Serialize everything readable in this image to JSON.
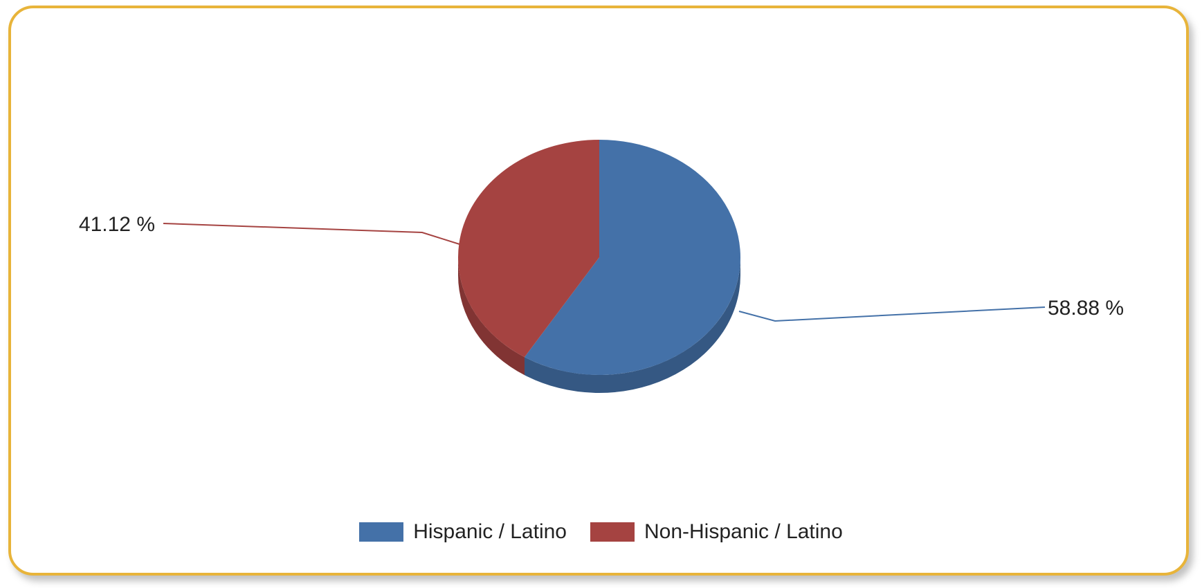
{
  "chart_data": {
    "type": "pie",
    "categories": [
      "Hispanic / Latino",
      "Non-Hispanic / Latino"
    ],
    "values": [
      58.88,
      41.12
    ],
    "labels": [
      "58.88 %",
      "41.12 %"
    ],
    "colors": [
      "#4471a8",
      "#a54341"
    ],
    "legend_position": "bottom",
    "style": "3d"
  },
  "colors": {
    "border": "#e8b43a",
    "background": "#ffffff"
  }
}
